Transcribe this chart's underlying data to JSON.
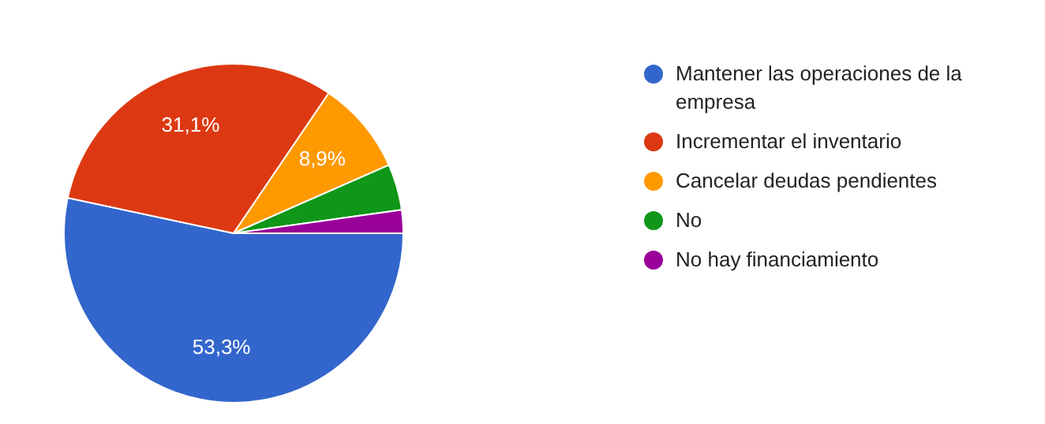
{
  "chart_data": {
    "type": "pie",
    "categories": [
      "Mantener las operaciones de la empresa",
      "Incrementar el inventario",
      "Cancelar deudas pendientes",
      "No",
      "No hay financiamiento"
    ],
    "values": [
      53.3,
      31.1,
      8.9,
      4.4,
      2.2
    ],
    "colors": [
      "#3366cc",
      "#dc3912",
      "#ff9900",
      "#109618",
      "#990099"
    ],
    "value_labels": [
      "53,3%",
      "31,1%",
      "8,9%",
      null,
      null
    ],
    "legend": "right"
  }
}
